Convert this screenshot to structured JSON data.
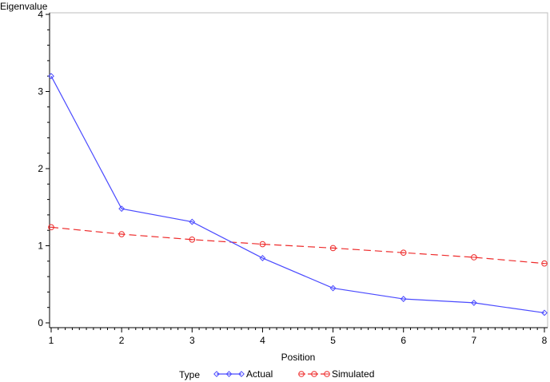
{
  "chart_data": {
    "type": "line",
    "title": "",
    "xlabel": "Position",
    "ylabel": "Eigenvalue",
    "x": [
      1,
      2,
      3,
      4,
      5,
      6,
      7,
      8
    ],
    "xlim": [
      1,
      8
    ],
    "ylim": [
      0,
      4
    ],
    "xticks": [
      "1",
      "2",
      "3",
      "4",
      "5",
      "6",
      "7",
      "8"
    ],
    "yticks": [
      "0",
      "1",
      "2",
      "3",
      "4"
    ],
    "grid": false,
    "legend": {
      "title": "Type",
      "placement": "bottom"
    },
    "series": [
      {
        "name": "Actual",
        "values": [
          3.2,
          1.48,
          1.31,
          0.84,
          0.45,
          0.31,
          0.26,
          0.13
        ],
        "color": "#4a4aff",
        "marker": "diamond",
        "line": "solid"
      },
      {
        "name": "Simulated",
        "values": [
          1.24,
          1.15,
          1.08,
          1.02,
          0.97,
          0.91,
          0.85,
          0.77
        ],
        "color": "#ee2b2b",
        "marker": "circle",
        "line": "dashed"
      }
    ]
  }
}
